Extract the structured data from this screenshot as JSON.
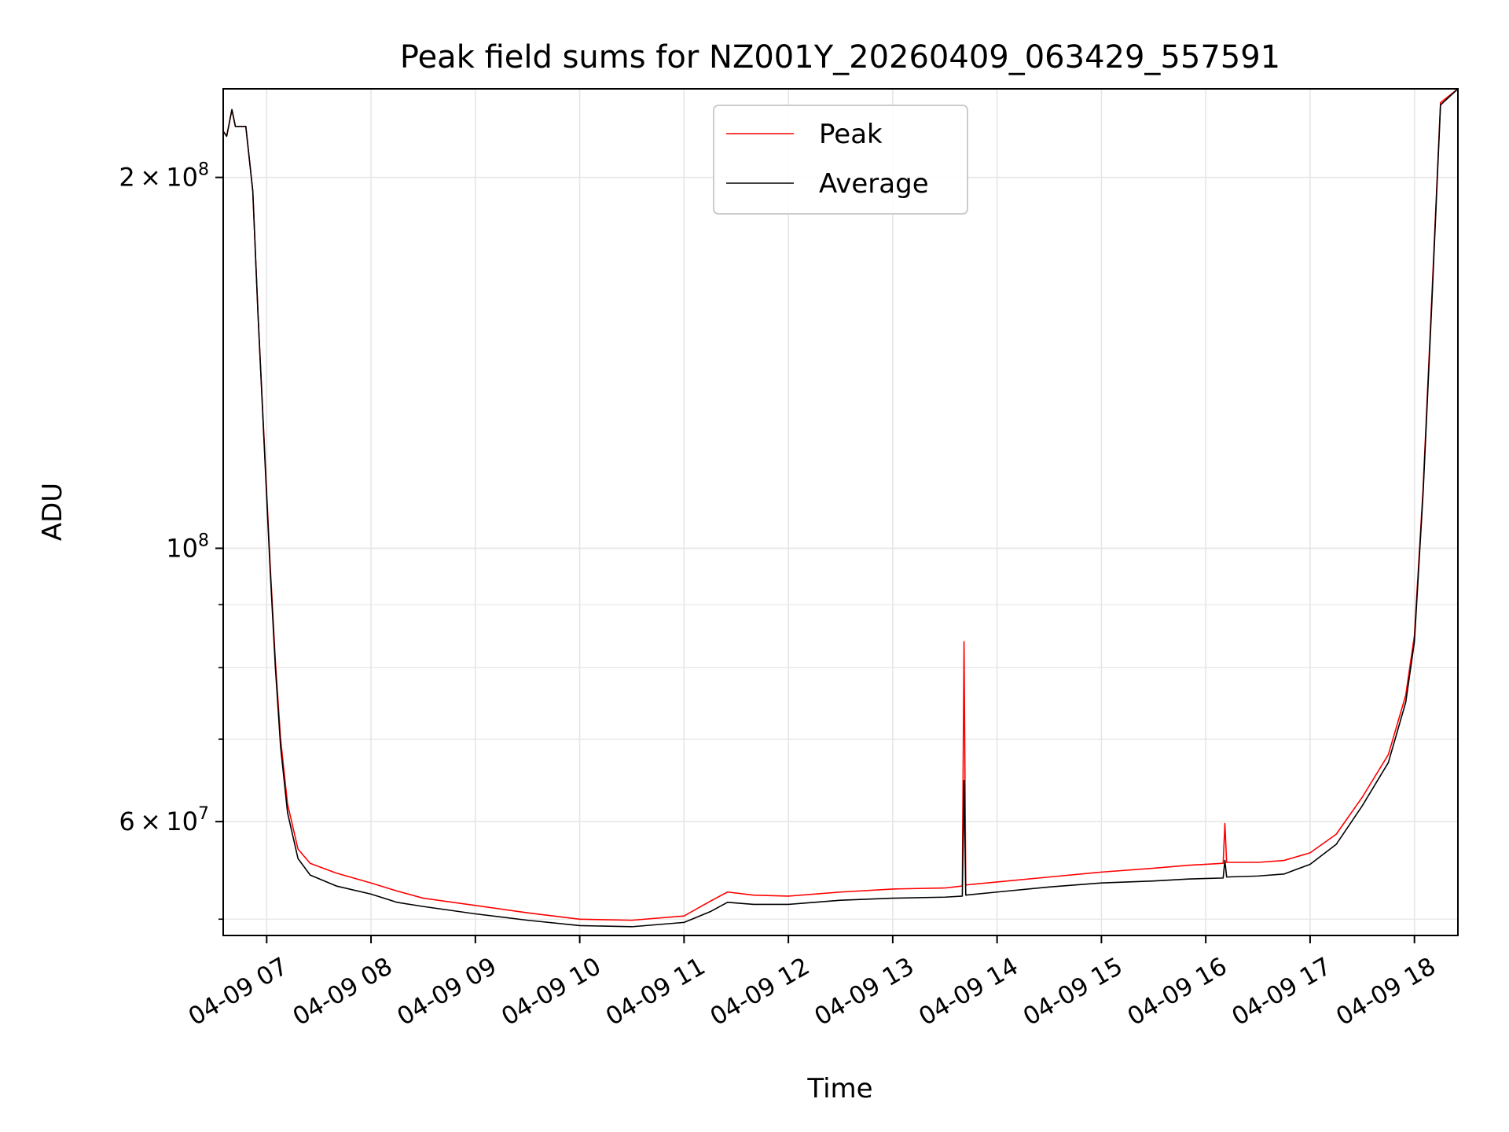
{
  "chart_data": {
    "type": "line",
    "title": "Peak field sums for NZ001Y_20260409_063429_557591",
    "xlabel": "Time",
    "ylabel": "ADU",
    "y_scale": "log",
    "grid": true,
    "legend_placement": "upper-center",
    "x_axis_format": "%m-%d %H",
    "xlim": [
      "2026-04-09 06:35",
      "2026-04-09 18:25"
    ],
    "ylim": [
      48500000,
      236000000
    ],
    "x_ticks": [
      {
        "value": "2026-04-09 07:00",
        "label": "04-09 07"
      },
      {
        "value": "2026-04-09 08:00",
        "label": "04-09 08"
      },
      {
        "value": "2026-04-09 09:00",
        "label": "04-09 09"
      },
      {
        "value": "2026-04-09 10:00",
        "label": "04-09 10"
      },
      {
        "value": "2026-04-09 11:00",
        "label": "04-09 11"
      },
      {
        "value": "2026-04-09 12:00",
        "label": "04-09 12"
      },
      {
        "value": "2026-04-09 13:00",
        "label": "04-09 13"
      },
      {
        "value": "2026-04-09 14:00",
        "label": "04-09 14"
      },
      {
        "value": "2026-04-09 15:00",
        "label": "04-09 15"
      },
      {
        "value": "2026-04-09 16:00",
        "label": "04-09 16"
      },
      {
        "value": "2026-04-09 17:00",
        "label": "04-09 17"
      },
      {
        "value": "2026-04-09 18:00",
        "label": "04-09 18"
      }
    ],
    "y_major_ticks": [
      {
        "value": 60000000,
        "mantissa": "6",
        "exponent": "7"
      },
      {
        "value": 100000000,
        "mantissa": "",
        "exponent": "8"
      },
      {
        "value": 200000000,
        "mantissa": "2",
        "exponent": "8"
      }
    ],
    "y_minor_ticks": [
      50000000,
      70000000,
      80000000,
      90000000,
      300000000
    ],
    "series": [
      {
        "name": "Peak",
        "color": "#ff0000",
        "points": [
          [
            "2026-04-09 06:35",
            218000000
          ],
          [
            "2026-04-09 06:37",
            216000000
          ],
          [
            "2026-04-09 06:40",
            227000000
          ],
          [
            "2026-04-09 06:42",
            220000000
          ],
          [
            "2026-04-09 06:45",
            220000000
          ],
          [
            "2026-04-09 06:48",
            220000000
          ],
          [
            "2026-04-09 06:52",
            195000000
          ],
          [
            "2026-04-09 06:55",
            155000000
          ],
          [
            "2026-04-09 07:00",
            111000000
          ],
          [
            "2026-04-09 07:02",
            97000000
          ],
          [
            "2026-04-09 07:05",
            81000000
          ],
          [
            "2026-04-09 07:08",
            70000000
          ],
          [
            "2026-04-09 07:12",
            62000000
          ],
          [
            "2026-04-09 07:18",
            57000000
          ],
          [
            "2026-04-09 07:25",
            55500000
          ],
          [
            "2026-04-09 07:40",
            54500000
          ],
          [
            "2026-04-09 08:00",
            53500000
          ],
          [
            "2026-04-09 08:15",
            52700000
          ],
          [
            "2026-04-09 08:30",
            52000000
          ],
          [
            "2026-04-09 09:00",
            51300000
          ],
          [
            "2026-04-09 09:30",
            50600000
          ],
          [
            "2026-04-09 10:00",
            50000000
          ],
          [
            "2026-04-09 10:30",
            49900000
          ],
          [
            "2026-04-09 11:00",
            50300000
          ],
          [
            "2026-04-09 11:15",
            51700000
          ],
          [
            "2026-04-09 11:25",
            52600000
          ],
          [
            "2026-04-09 11:40",
            52300000
          ],
          [
            "2026-04-09 12:00",
            52200000
          ],
          [
            "2026-04-09 12:30",
            52600000
          ],
          [
            "2026-04-09 13:00",
            52900000
          ],
          [
            "2026-04-09 13:30",
            53000000
          ],
          [
            "2026-04-09 13:40",
            53200000
          ],
          [
            "2026-04-09 13:41",
            84000000
          ],
          [
            "2026-04-09 13:42",
            53300000
          ],
          [
            "2026-04-09 14:00",
            53600000
          ],
          [
            "2026-04-09 14:30",
            54100000
          ],
          [
            "2026-04-09 15:00",
            54600000
          ],
          [
            "2026-04-09 15:30",
            55000000
          ],
          [
            "2026-04-09 15:50",
            55300000
          ],
          [
            "2026-04-09 16:10",
            55500000
          ],
          [
            "2026-04-09 16:11",
            59800000
          ],
          [
            "2026-04-09 16:12",
            55600000
          ],
          [
            "2026-04-09 16:30",
            55600000
          ],
          [
            "2026-04-09 16:45",
            55800000
          ],
          [
            "2026-04-09 17:00",
            56600000
          ],
          [
            "2026-04-09 17:15",
            58600000
          ],
          [
            "2026-04-09 17:30",
            62800000
          ],
          [
            "2026-04-09 17:45",
            68000000
          ],
          [
            "2026-04-09 17:55",
            76000000
          ],
          [
            "2026-04-09 18:00",
            85000000
          ],
          [
            "2026-04-09 18:05",
            112000000
          ],
          [
            "2026-04-09 18:10",
            160000000
          ],
          [
            "2026-04-09 18:15",
            230000000
          ],
          [
            "2026-04-09 18:25",
            236000000
          ]
        ]
      },
      {
        "name": "Average",
        "color": "#000000",
        "points": [
          [
            "2026-04-09 06:35",
            218000000
          ],
          [
            "2026-04-09 06:37",
            216000000
          ],
          [
            "2026-04-09 06:40",
            227000000
          ],
          [
            "2026-04-09 06:42",
            220000000
          ],
          [
            "2026-04-09 06:45",
            220000000
          ],
          [
            "2026-04-09 06:48",
            220000000
          ],
          [
            "2026-04-09 06:52",
            195000000
          ],
          [
            "2026-04-09 06:55",
            155000000
          ],
          [
            "2026-04-09 07:00",
            110000000
          ],
          [
            "2026-04-09 07:02",
            96000000
          ],
          [
            "2026-04-09 07:05",
            80000000
          ],
          [
            "2026-04-09 07:08",
            69000000
          ],
          [
            "2026-04-09 07:12",
            61000000
          ],
          [
            "2026-04-09 07:18",
            56000000
          ],
          [
            "2026-04-09 07:25",
            54300000
          ],
          [
            "2026-04-09 07:40",
            53200000
          ],
          [
            "2026-04-09 08:00",
            52400000
          ],
          [
            "2026-04-09 08:15",
            51600000
          ],
          [
            "2026-04-09 08:30",
            51200000
          ],
          [
            "2026-04-09 09:00",
            50500000
          ],
          [
            "2026-04-09 09:30",
            49900000
          ],
          [
            "2026-04-09 10:00",
            49400000
          ],
          [
            "2026-04-09 10:30",
            49300000
          ],
          [
            "2026-04-09 11:00",
            49700000
          ],
          [
            "2026-04-09 11:15",
            50700000
          ],
          [
            "2026-04-09 11:25",
            51600000
          ],
          [
            "2026-04-09 11:40",
            51400000
          ],
          [
            "2026-04-09 12:00",
            51400000
          ],
          [
            "2026-04-09 12:30",
            51800000
          ],
          [
            "2026-04-09 13:00",
            52000000
          ],
          [
            "2026-04-09 13:30",
            52100000
          ],
          [
            "2026-04-09 13:40",
            52200000
          ],
          [
            "2026-04-09 13:41",
            64800000
          ],
          [
            "2026-04-09 13:42",
            52300000
          ],
          [
            "2026-04-09 14:00",
            52600000
          ],
          [
            "2026-04-09 14:30",
            53100000
          ],
          [
            "2026-04-09 15:00",
            53500000
          ],
          [
            "2026-04-09 15:30",
            53700000
          ],
          [
            "2026-04-09 15:50",
            53900000
          ],
          [
            "2026-04-09 16:10",
            54000000
          ],
          [
            "2026-04-09 16:11",
            55800000
          ],
          [
            "2026-04-09 16:12",
            54100000
          ],
          [
            "2026-04-09 16:30",
            54200000
          ],
          [
            "2026-04-09 16:45",
            54400000
          ],
          [
            "2026-04-09 17:00",
            55400000
          ],
          [
            "2026-04-09 17:15",
            57500000
          ],
          [
            "2026-04-09 17:30",
            61800000
          ],
          [
            "2026-04-09 17:45",
            67000000
          ],
          [
            "2026-04-09 17:55",
            75000000
          ],
          [
            "2026-04-09 18:00",
            84000000
          ],
          [
            "2026-04-09 18:05",
            111000000
          ],
          [
            "2026-04-09 18:10",
            158000000
          ],
          [
            "2026-04-09 18:15",
            229000000
          ],
          [
            "2026-04-09 18:25",
            236000000
          ]
        ]
      }
    ]
  }
}
